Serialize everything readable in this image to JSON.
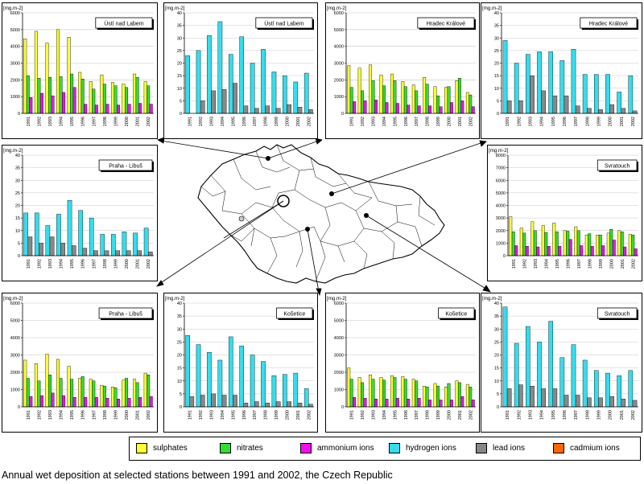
{
  "caption": "Annual wet deposition at selected stations between 1991 and 2002, the Czech Republic",
  "legend": [
    {
      "name": "sulphates",
      "color": "#ffff33"
    },
    {
      "name": "nitrates",
      "color": "#33dd33"
    },
    {
      "name": "ammonium ions",
      "color": "#ee11ee"
    },
    {
      "name": "hydrogen ions",
      "color": "#33ddee"
    },
    {
      "name": "lead ions",
      "color": "#888888"
    },
    {
      "name": "cadmium ions",
      "color": "#ff6600"
    }
  ],
  "colors": {
    "sulphates": "#ffff33",
    "nitrates": "#33dd33",
    "ammonium ions": "#ee11ee",
    "hydrogen ions": "#33ddee",
    "lead ions": "#888888",
    "cadmium ions": "#ff6600"
  },
  "chart_data": [
    {
      "type": "bar",
      "title": "Ústí nad Labem",
      "ylabel": "[mg.m-2]",
      "ylim": [
        0,
        6000
      ],
      "yticks": [
        0,
        1000,
        2000,
        3000,
        4000,
        5000,
        6000
      ],
      "categories": [
        "1991",
        "1992",
        "1993",
        "1994",
        "1995",
        "1996",
        "1997",
        "1998",
        "1999",
        "2000",
        "2001",
        "2002"
      ],
      "series": [
        {
          "name": "sulphates",
          "values": [
            4450,
            4900,
            4200,
            5000,
            4550,
            2450,
            1900,
            2300,
            1850,
            1750,
            2350,
            1900
          ]
        },
        {
          "name": "nitrates",
          "values": [
            2250,
            2100,
            2150,
            2200,
            2350,
            2050,
            1450,
            1750,
            1650,
            1550,
            2150,
            1650
          ]
        },
        {
          "name": "ammonium ions",
          "values": [
            950,
            1200,
            1050,
            1250,
            1550,
            550,
            500,
            550,
            500,
            550,
            600,
            550
          ]
        }
      ]
    },
    {
      "type": "bar",
      "title": "Ústí nad Labem",
      "ylabel": "[mg.m-2]",
      "ylim": [
        0,
        40
      ],
      "yticks": [
        0,
        5,
        10,
        15,
        20,
        25,
        30,
        35,
        40
      ],
      "categories": [
        "1991",
        "1992",
        "1993",
        "1994",
        "1995",
        "1996",
        "1997",
        "1998",
        "1999",
        "2000",
        "2001",
        "2002"
      ],
      "series": [
        {
          "name": "hydrogen ions",
          "values": [
            23,
            25,
            31,
            36.5,
            23.5,
            30.5,
            20,
            25.5,
            16.5,
            15,
            12.5,
            16
          ]
        },
        {
          "name": "lead ions",
          "values": [
            0,
            5,
            9,
            9.5,
            12,
            3,
            2,
            3,
            2,
            3.5,
            2.5,
            1.5
          ]
        }
      ]
    },
    {
      "type": "bar",
      "title": "Hradec Králové",
      "ylabel": "[mg.m-2]",
      "ylim": [
        0,
        6000
      ],
      "yticks": [
        0,
        1000,
        2000,
        3000,
        4000,
        5000,
        6000
      ],
      "categories": [
        "1991",
        "1992",
        "1993",
        "1994",
        "1995",
        "1996",
        "1997",
        "1998",
        "1999",
        "2000",
        "2001",
        "2002"
      ],
      "series": [
        {
          "name": "sulphates",
          "values": [
            2850,
            2700,
            2900,
            2300,
            2350,
            1900,
            1700,
            2150,
            1600,
            1550,
            1950,
            1250
          ]
        },
        {
          "name": "nitrates",
          "values": [
            1550,
            1350,
            1950,
            1650,
            1950,
            1600,
            1350,
            1750,
            1050,
            1600,
            2100,
            1100
          ]
        },
        {
          "name": "ammonium ions",
          "values": [
            700,
            750,
            800,
            650,
            600,
            500,
            450,
            450,
            400,
            650,
            750,
            400
          ]
        }
      ]
    },
    {
      "type": "bar",
      "title": "Hradec Králové",
      "ylabel": "[mg.m-2]",
      "ylim": [
        0,
        40
      ],
      "yticks": [
        0,
        5,
        10,
        15,
        20,
        25,
        30,
        35,
        40
      ],
      "categories": [
        "1991",
        "1992",
        "1993",
        "1994",
        "1995",
        "1996",
        "1997",
        "1998",
        "1999",
        "2000",
        "2001",
        "2002"
      ],
      "series": [
        {
          "name": "hydrogen ions",
          "values": [
            29,
            20,
            23.5,
            24.5,
            24.5,
            21,
            25.5,
            15.5,
            15.5,
            15.5,
            8.5,
            15
          ]
        },
        {
          "name": "lead ions",
          "values": [
            5,
            5,
            15,
            9,
            7,
            7,
            3,
            2,
            1.5,
            3.5,
            2,
            1
          ]
        }
      ]
    },
    {
      "type": "bar",
      "title": "Praha - Libuš",
      "ylabel": "[mg.m-2]",
      "ylim": [
        0,
        40
      ],
      "yticks": [
        0,
        5,
        10,
        15,
        20,
        25,
        30,
        35,
        40
      ],
      "categories": [
        "1991",
        "1992",
        "1993",
        "1994",
        "1995",
        "1996",
        "1997",
        "1998",
        "1999",
        "2000",
        "2001",
        "2002"
      ],
      "series": [
        {
          "name": "hydrogen ions",
          "values": [
            17,
            17,
            12,
            16.5,
            22,
            18,
            15,
            8.5,
            8.5,
            9.5,
            9,
            11
          ]
        },
        {
          "name": "lead ions",
          "values": [
            7.5,
            5,
            7.5,
            5,
            4,
            3,
            2,
            2,
            2,
            2,
            2,
            1.5
          ]
        }
      ]
    },
    {
      "type": "bar",
      "title": "Svratouch",
      "ylabel": "[mg.m-2]",
      "ylim": [
        0,
        8000
      ],
      "yticks": [
        0,
        1000,
        2000,
        3000,
        4000,
        5000,
        6000,
        7000,
        8000
      ],
      "categories": [
        "1991",
        "1992",
        "1993",
        "1994",
        "1995",
        "1996",
        "1997",
        "1998",
        "1999",
        "2000",
        "2001",
        "2002"
      ],
      "series": [
        {
          "name": "sulphates",
          "values": [
            3100,
            2200,
            2700,
            2400,
            2600,
            2000,
            2300,
            1650,
            1650,
            1800,
            2000,
            1700
          ]
        },
        {
          "name": "nitrates",
          "values": [
            1900,
            1800,
            2000,
            1850,
            1900,
            1950,
            2000,
            1750,
            1650,
            2100,
            1900,
            1650
          ]
        },
        {
          "name": "ammonium ions",
          "values": [
            800,
            750,
            700,
            750,
            750,
            1300,
            800,
            750,
            800,
            1250,
            700,
            550
          ]
        }
      ]
    },
    {
      "type": "bar",
      "title": "Praha - Libuš",
      "ylabel": "[mg.m-2]",
      "ylim": [
        0,
        6000
      ],
      "yticks": [
        0,
        1000,
        2000,
        3000,
        4000,
        5000,
        6000
      ],
      "categories": [
        "1991",
        "1992",
        "1993",
        "1994",
        "1995",
        "1996",
        "1997",
        "1998",
        "1999",
        "2000",
        "2001",
        "2002"
      ],
      "series": [
        {
          "name": "sulphates",
          "values": [
            2700,
            2500,
            3050,
            2750,
            2350,
            1650,
            1600,
            1250,
            1150,
            1550,
            1600,
            1950
          ]
        },
        {
          "name": "nitrates",
          "values": [
            1650,
            1500,
            1850,
            1650,
            1600,
            1750,
            1500,
            1200,
            1100,
            1650,
            1400,
            1850
          ]
        },
        {
          "name": "ammonium ions",
          "values": [
            600,
            650,
            800,
            650,
            550,
            550,
            550,
            500,
            450,
            500,
            550,
            600
          ]
        }
      ]
    },
    {
      "type": "bar",
      "title": "Košetice",
      "ylabel": "[mg.m-2]",
      "ylim": [
        0,
        40
      ],
      "yticks": [
        0,
        5,
        10,
        15,
        20,
        25,
        30,
        35,
        40
      ],
      "categories": [
        "1991",
        "1992",
        "1993",
        "1994",
        "1995",
        "1996",
        "1997",
        "1998",
        "1999",
        "2000",
        "2001",
        "2002"
      ],
      "series": [
        {
          "name": "hydrogen ions",
          "values": [
            27.5,
            24,
            21,
            18,
            27,
            23.5,
            20,
            17.5,
            12,
            12.5,
            13,
            7
          ]
        },
        {
          "name": "lead ions",
          "values": [
            4,
            4.5,
            5,
            4.5,
            4.5,
            1.5,
            2,
            1.5,
            2,
            2,
            1.5,
            1
          ]
        }
      ]
    },
    {
      "type": "bar",
      "title": "Košetice",
      "ylabel": "[mg.m-2]",
      "ylim": [
        0,
        6000
      ],
      "yticks": [
        0,
        1000,
        2000,
        3000,
        4000,
        5000,
        6000
      ],
      "categories": [
        "1991",
        "1992",
        "1993",
        "1994",
        "1995",
        "1996",
        "1997",
        "1998",
        "1999",
        "2000",
        "2001",
        "2002"
      ],
      "series": [
        {
          "name": "sulphates",
          "values": [
            2250,
            1700,
            1850,
            1700,
            1800,
            1750,
            1600,
            1200,
            1350,
            1150,
            1500,
            1300
          ]
        },
        {
          "name": "nitrates",
          "values": [
            1600,
            1400,
            1600,
            1550,
            1700,
            1600,
            1500,
            1150,
            1200,
            1350,
            1400,
            1150
          ]
        },
        {
          "name": "ammonium ions",
          "values": [
            550,
            500,
            450,
            450,
            500,
            450,
            500,
            400,
            400,
            400,
            600,
            400
          ]
        }
      ]
    },
    {
      "type": "bar",
      "title": "Svratouch",
      "ylabel": "[mg.m-2]",
      "ylim": [
        0,
        40
      ],
      "yticks": [
        0,
        5,
        10,
        15,
        20,
        25,
        30,
        35,
        40
      ],
      "categories": [
        "1991",
        "1992",
        "1993",
        "1994",
        "1995",
        "1996",
        "1997",
        "1998",
        "1999",
        "2000",
        "2001",
        "2002"
      ],
      "series": [
        {
          "name": "hydrogen ions",
          "values": [
            38.5,
            24.5,
            31,
            25,
            33,
            19,
            24,
            18,
            14,
            13,
            12,
            14
          ]
        },
        {
          "name": "lead ions",
          "values": [
            7,
            8.5,
            8,
            7,
            7,
            4.5,
            4.5,
            3.5,
            3.5,
            4,
            3,
            2.5
          ]
        }
      ]
    }
  ]
}
